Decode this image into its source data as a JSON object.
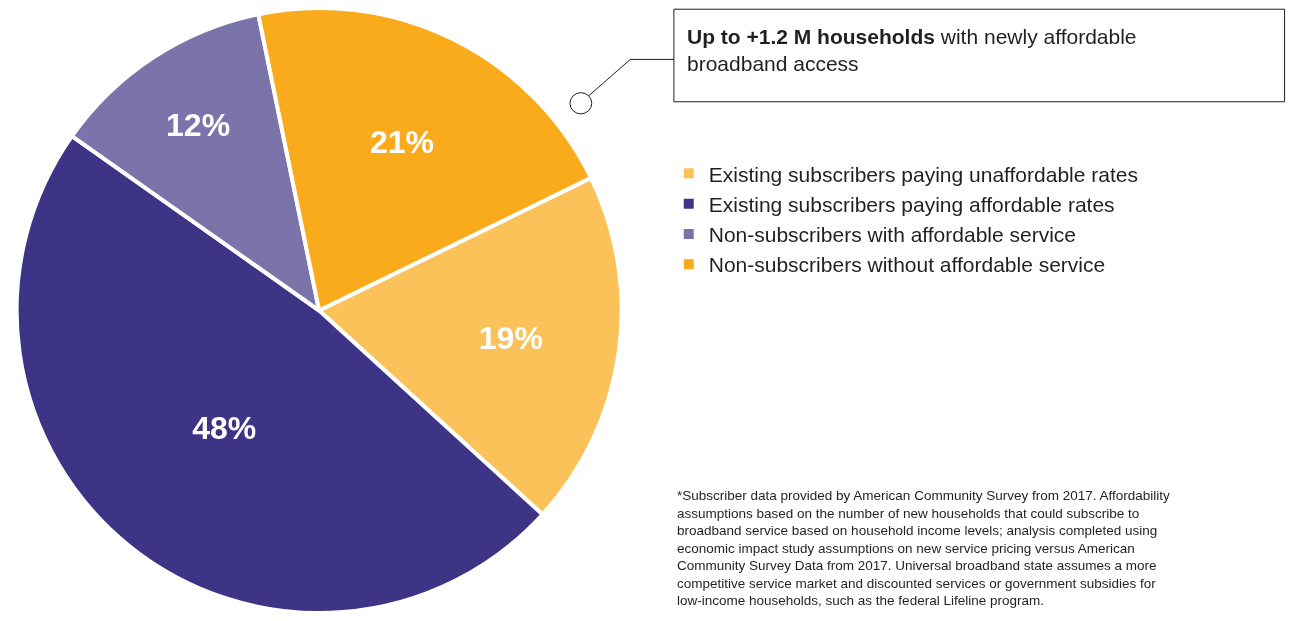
{
  "chart_data": {
    "type": "pie",
    "categories": [
      "Existing subscribers paying unaffordable rates",
      "Existing subscribers paying affordable rates",
      "Non-subscribers with affordable service",
      "Non-subscribers without affordable service"
    ],
    "values": [
      19,
      48,
      12,
      21
    ],
    "value_labels": [
      "19%",
      "48%",
      "12%",
      "21%"
    ],
    "colors": [
      "#fbc25a",
      "#3d3486",
      "#7a74aa",
      "#f9ab1c"
    ],
    "legend": "right",
    "annotations": [
      "Up to +1.2 M households",
      "with newly affordable\nbroadband access",
      "*Subscriber data provided by American Community Survey from 2017. Affordability\nassumptions based on the number of new households that could subscribe to\nbroadband service based on household income levels; analysis completed using\neconomic impact study assumptions on new service pricing versus American\nCommunity Survey Data from 2017. Universal broadband state assumes a more\ncompetitive service market and discounted services or government subsidies for\nlow-income households, such as the federal Lifeline program."
    ]
  }
}
